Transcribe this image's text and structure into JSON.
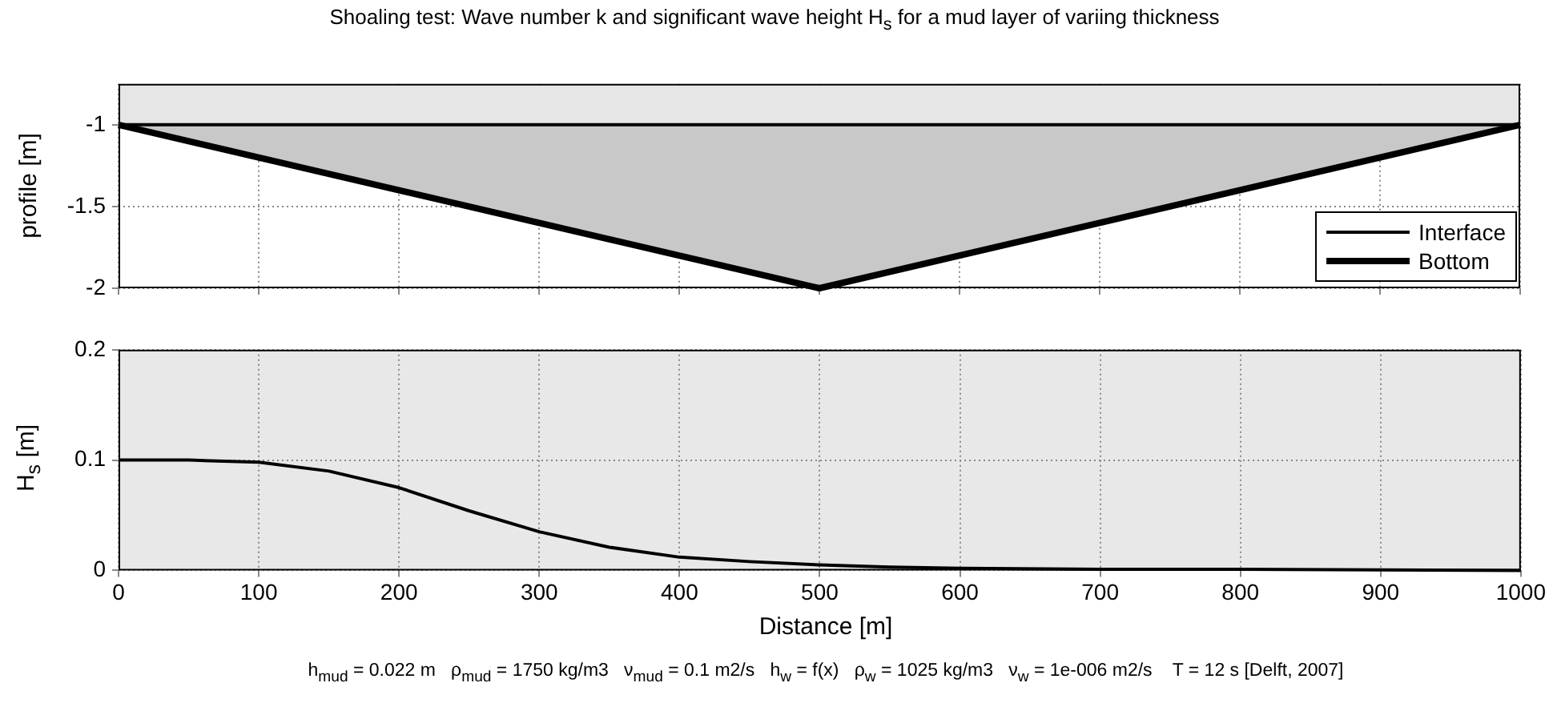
{
  "chart_data": [
    {
      "type": "line",
      "title": "Shoaling test: Wave number k and significant wave height H$_{s}$ for a mud layer of variing thickness",
      "ylabel": "profile [m]",
      "x": [
        0,
        500,
        1000
      ],
      "series": [
        {
          "name": "Interface",
          "color": "#000000",
          "values": [
            -1,
            -1,
            -1
          ]
        },
        {
          "name": "Bottom",
          "color": "#000000",
          "values": [
            -1,
            -2,
            -1
          ],
          "lower": [
            -1,
            -2,
            -1
          ],
          "upper": [
            -1,
            -1,
            -1
          ]
        }
      ],
      "bands": [
        {
          "axis": "y",
          "from": -1,
          "to": -0.75,
          "color": "#e6e6e6"
        }
      ],
      "xlim": [
        0,
        1000
      ],
      "xticks": [
        0,
        100,
        200,
        300,
        400,
        500,
        600,
        700,
        800,
        900,
        1000
      ],
      "ylim": [
        -2,
        -0.75
      ],
      "yticks": [
        -2,
        -1.5,
        -1
      ],
      "grid": true,
      "legend": "bottom right",
      "tick_labels": "y"
    },
    {
      "type": "line",
      "ylabel": "H$_{s}$ [m]",
      "xlabel": "Distance [m]",
      "x": [
        0,
        50,
        100,
        150,
        200,
        250,
        300,
        350,
        400,
        450,
        500,
        550,
        600,
        700,
        800,
        1000
      ],
      "series": [
        {
          "color": "#000000",
          "values": [
            0.1,
            0.1,
            0.098,
            0.09,
            0.075,
            0.054,
            0.035,
            0.021,
            0.012,
            0.008,
            0.005,
            0.003,
            0.002,
            0.001,
            0.001,
            0
          ]
        }
      ],
      "xlim": [
        0,
        1000
      ],
      "xticks": [
        0,
        100,
        200,
        300,
        400,
        500,
        600,
        700,
        800,
        900,
        1000
      ],
      "ylim": [
        0,
        0.2
      ],
      "yticks": [
        0,
        0.1,
        0.2
      ],
      "grid": true,
      "annotations": [
        "h$_{mud}$ = 0.022 m   ρ$_{mud}$ = 1750 kg/m3   ν$_{mud}$ = 0.1 m2/s   h$_{w}$ = f(x)   ρ$_{w}$ = 1025 kg/m3   ν$_{w}$ = 1e-006 m2/s    T = 12 s [Delft, 2007]"
      ]
    }
  ]
}
